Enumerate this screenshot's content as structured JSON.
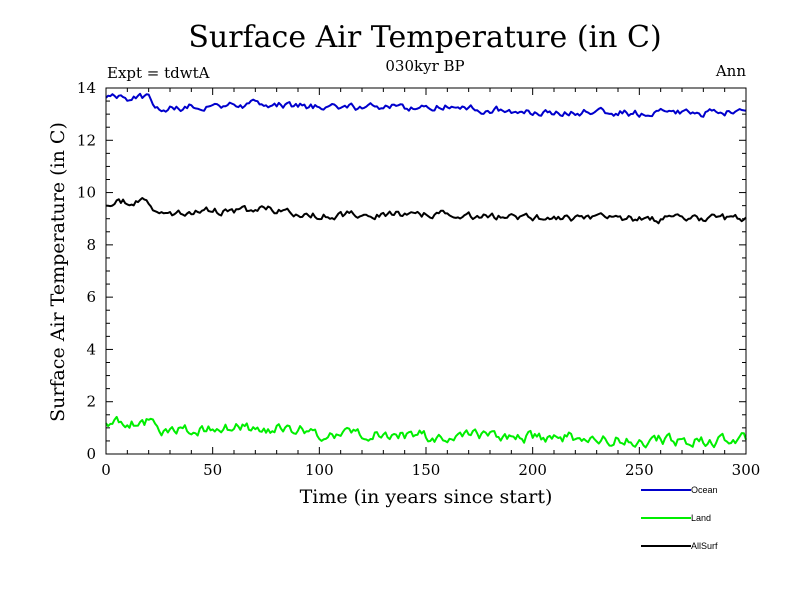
{
  "chart_data": {
    "type": "line",
    "title": "Surface Air Temperature (in C)",
    "subtitle": "030kyr BP",
    "experiment_label": "Expt = tdwtA",
    "season_label": "Ann",
    "xlabel": "Time (in years since start)",
    "ylabel": "Surface Air Temperature (in C)",
    "xlim": [
      0,
      300
    ],
    "ylim": [
      0,
      14
    ],
    "x_ticks": [
      "0",
      "50",
      "100",
      "150",
      "200",
      "250",
      "300"
    ],
    "y_ticks": [
      "0",
      "2",
      "4",
      "6",
      "8",
      "10",
      "12",
      "14"
    ],
    "series": [
      {
        "name": "Ocean",
        "color": "#0000cc",
        "keypoints": [
          [
            0,
            13.7
          ],
          [
            20,
            13.6
          ],
          [
            25,
            13.2
          ],
          [
            50,
            13.35
          ],
          [
            80,
            13.4
          ],
          [
            100,
            13.25
          ],
          [
            150,
            13.3
          ],
          [
            200,
            13.1
          ],
          [
            250,
            13.05
          ],
          [
            300,
            13.05
          ]
        ],
        "noise": 0.12
      },
      {
        "name": "Land",
        "color": "#00ee00",
        "keypoints": [
          [
            0,
            1.2
          ],
          [
            20,
            1.25
          ],
          [
            25,
            0.9
          ],
          [
            50,
            0.95
          ],
          [
            80,
            1.0
          ],
          [
            100,
            0.8
          ],
          [
            150,
            0.7
          ],
          [
            200,
            0.65
          ],
          [
            250,
            0.55
          ],
          [
            290,
            0.5
          ],
          [
            300,
            0.6
          ]
        ],
        "noise": 0.18
      },
      {
        "name": "AllSurf",
        "color": "#000000",
        "keypoints": [
          [
            0,
            9.6
          ],
          [
            20,
            9.65
          ],
          [
            25,
            9.2
          ],
          [
            50,
            9.3
          ],
          [
            80,
            9.35
          ],
          [
            100,
            9.15
          ],
          [
            150,
            9.2
          ],
          [
            200,
            9.05
          ],
          [
            250,
            9.0
          ],
          [
            300,
            9.0
          ]
        ],
        "noise": 0.12
      }
    ]
  }
}
